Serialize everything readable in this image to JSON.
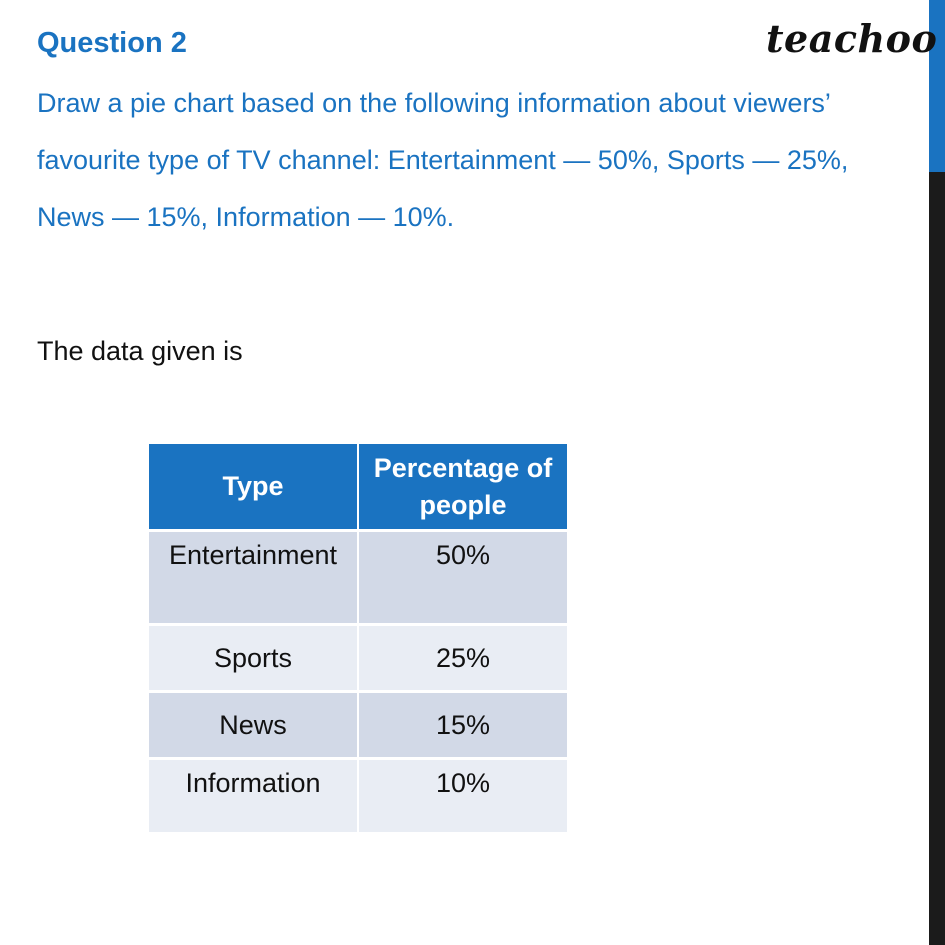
{
  "header": {
    "question_title": "Question 2",
    "logo_text": "teachoo"
  },
  "question": {
    "lines": [
      "Draw a pie chart based on the following information about viewers’",
      "favourite type of TV channel: Entertainment — 50%, Sports — 25%,",
      "News — 15%, Information — 10%."
    ]
  },
  "body": {
    "intro": "The data given is"
  },
  "table": {
    "headers": [
      "Type",
      "Percentage of people"
    ],
    "rows": [
      [
        "Entertainment",
        "50%"
      ],
      [
        "Sports",
        "25%"
      ],
      [
        "News",
        "15%"
      ],
      [
        "Information",
        "10%"
      ]
    ]
  },
  "colors": {
    "accent_blue": "#1a73c1",
    "row_dark": "#d2d9e7",
    "row_light": "#e9edf4",
    "side_bar": "#1b1b1b"
  }
}
